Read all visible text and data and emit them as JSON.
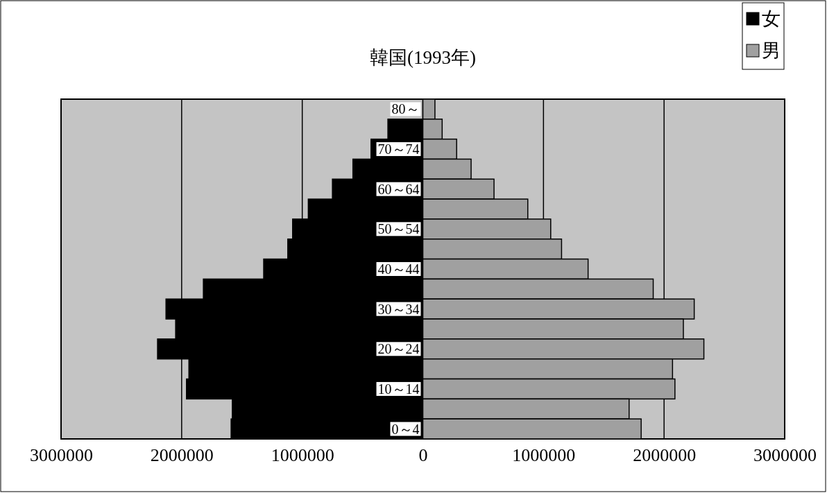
{
  "chart_data": {
    "type": "bar",
    "title": "韓国(1993年)",
    "orientation": "horizontal",
    "categories": [
      "80～",
      null,
      "70～74",
      null,
      "60～64",
      null,
      "50～54",
      null,
      "40～44",
      null,
      "30～34",
      null,
      "20～24",
      null,
      "10～14",
      null,
      "0～4"
    ],
    "series": [
      {
        "name": "女",
        "color": "#000000",
        "values": [
          null,
          -290000,
          -430000,
          -580000,
          -750000,
          -950000,
          -1080000,
          -1120000,
          -1320000,
          -1820000,
          -2130000,
          -2050000,
          -2200000,
          -1940000,
          -1960000,
          -1580000,
          -1590000
        ]
      },
      {
        "name": "男",
        "color": "#a0a0a0",
        "values": [
          100000,
          160000,
          280000,
          400000,
          590000,
          870000,
          1060000,
          1150000,
          1370000,
          1910000,
          2250000,
          2160000,
          2330000,
          2070000,
          2090000,
          1710000,
          1810000
        ]
      }
    ],
    "xlim": [
      -3000000,
      3000000
    ],
    "xticks": [
      {
        "value": -3000000,
        "label": "3000000"
      },
      {
        "value": -2000000,
        "label": "2000000"
      },
      {
        "value": -1000000,
        "label": "1000000"
      },
      0,
      1000000,
      2000000,
      3000000
    ],
    "grid": "x",
    "legend": "top right",
    "stacked": true
  }
}
